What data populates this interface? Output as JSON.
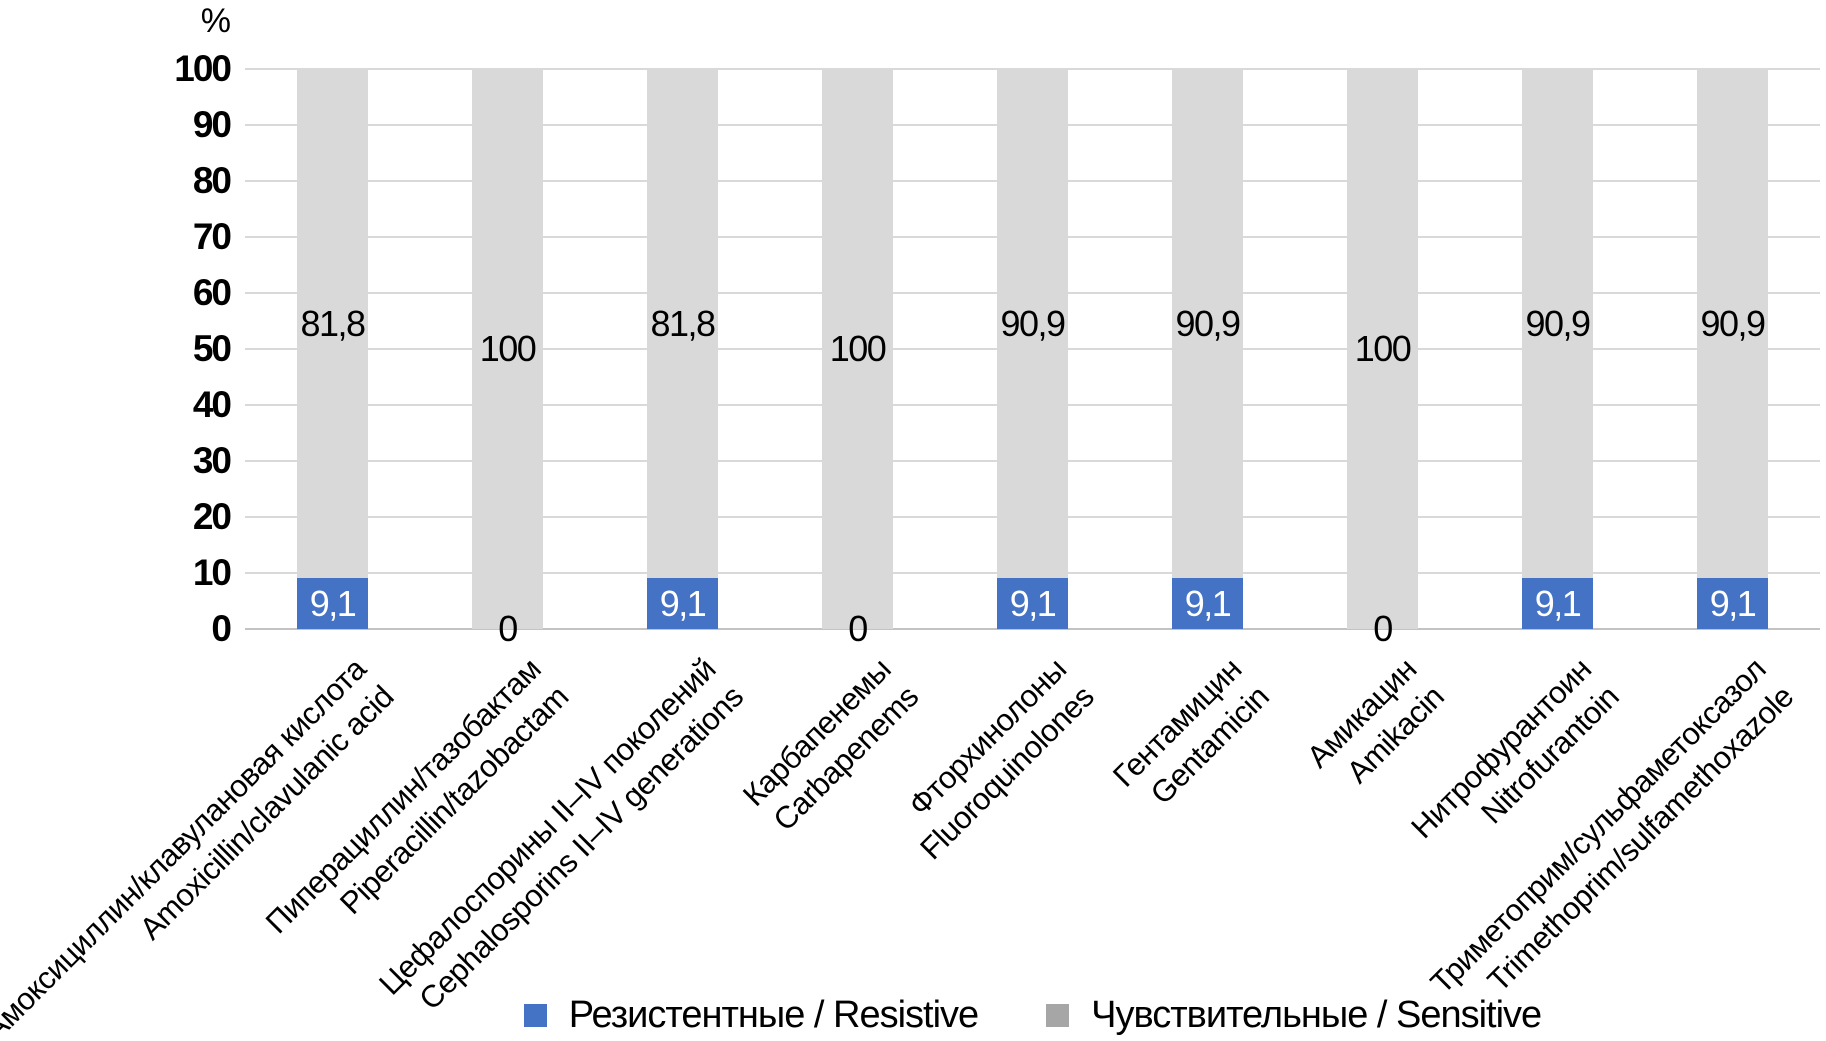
{
  "chart_data": {
    "type": "bar",
    "subtype": "stacked-vertical",
    "unit": "%",
    "ylim": [
      0,
      100
    ],
    "y_ticks": [
      0,
      10,
      20,
      30,
      40,
      50,
      60,
      70,
      80,
      90,
      100
    ],
    "grid": "horizontal",
    "legend_position": "bottom-center",
    "categories": [
      {
        "ru": "Амоксициллин/клавулановая кислота",
        "en": "Amoxicillin/clavulanic acid"
      },
      {
        "ru": "Пиперациллин/тазобактам",
        "en": "Piperacillin/tazobactam"
      },
      {
        "ru": "Цефалоспорины II–IV поколений",
        "en": "Cephalosporins II–IV generations"
      },
      {
        "ru": "Карбапенемы",
        "en": "Carbapenems"
      },
      {
        "ru": "Фторхинолоны",
        "en": "Fluoroquinolones"
      },
      {
        "ru": "Гентамицин",
        "en": "Gentamicin"
      },
      {
        "ru": "Амикацин",
        "en": "Amikacin"
      },
      {
        "ru": "Нитрофурантоин",
        "en": "Nitrofurantoin"
      },
      {
        "ru": "Триметоприм/сульфаметоксазол",
        "en": "Trimethoprim/sulfamethoxazole"
      }
    ],
    "series": [
      {
        "name": "Резистентные / Resistive",
        "color": "#4472C4",
        "label_color": "#ffffff",
        "zero_label_color": "#000000",
        "values": [
          9.1,
          0,
          9.1,
          0,
          9.1,
          9.1,
          0,
          9.1,
          9.1
        ],
        "labels": [
          "9,1",
          "0",
          "9,1",
          "0",
          "9,1",
          "9,1",
          "0",
          "9,1",
          "9,1"
        ]
      },
      {
        "name": "Чувствительные / Sensitive",
        "color": "#D9D9D9",
        "label_color": "#000000",
        "drawn_top": 100,
        "values": [
          81.8,
          100,
          81.8,
          100,
          90.9,
          90.9,
          100,
          90.9,
          90.9
        ],
        "labels": [
          "81,8",
          "100",
          "81,8",
          "100",
          "90,9",
          "90,9",
          "100",
          "90,9",
          "90,9"
        ]
      }
    ],
    "legend": [
      {
        "label": "Резистентные / Resistive",
        "color": "#4472C4"
      },
      {
        "label": "Чувствительные / Sensitive",
        "color": "#A6A6A6"
      }
    ],
    "colors": {
      "grid": "#D9D9D9",
      "axis_line": "#C3C3C3",
      "text": "#000000"
    }
  }
}
